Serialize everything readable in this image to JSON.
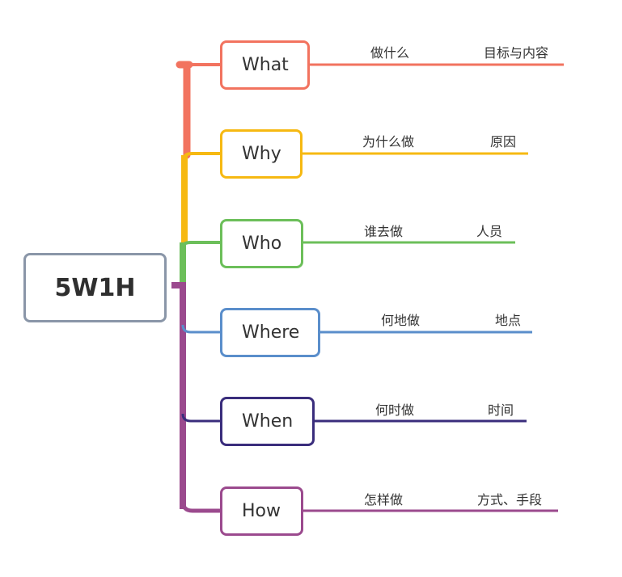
{
  "root": {
    "label": "5W1H"
  },
  "branches": [
    {
      "label": "What",
      "question": "做什么",
      "answer": "目标与内容",
      "color": "#f2735f"
    },
    {
      "label": "Why",
      "question": "为什么做",
      "answer": "原因",
      "color": "#f6b912"
    },
    {
      "label": "Who",
      "question": "谁去做",
      "answer": "人员",
      "color": "#6cbf5a"
    },
    {
      "label": "Where",
      "question": "何地做",
      "answer": "地点",
      "color": "#5a8ecb"
    },
    {
      "label": "When",
      "question": "何时做",
      "answer": "时间",
      "color": "#3a2d7c"
    },
    {
      "label": "How",
      "question": "怎样做",
      "answer": "方式、手段",
      "color": "#9b4a8e"
    }
  ]
}
